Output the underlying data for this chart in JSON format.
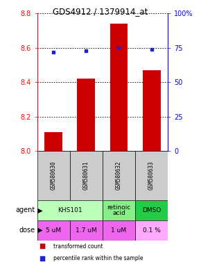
{
  "title": "GDS4912 / 1379914_at",
  "samples": [
    "GSM580630",
    "GSM580631",
    "GSM580632",
    "GSM580633"
  ],
  "bar_values": [
    8.11,
    8.42,
    8.74,
    8.47
  ],
  "perc_values": [
    72,
    73,
    75,
    74
  ],
  "ylim_left": [
    8.0,
    8.8
  ],
  "ylim_right": [
    0,
    100
  ],
  "yticks_left": [
    8.0,
    8.2,
    8.4,
    8.6,
    8.8
  ],
  "yticks_right": [
    0,
    25,
    50,
    75,
    100
  ],
  "ytick_labels_right": [
    "0",
    "25",
    "50",
    "75",
    "100%"
  ],
  "bar_color": "#cc0000",
  "dot_color": "#2222cc",
  "bar_width": 0.55,
  "agent_blocks": [
    {
      "start": 0,
      "end": 2,
      "label": "KHS101",
      "color": "#bbffbb"
    },
    {
      "start": 2,
      "end": 3,
      "label": "retinoic\nacid",
      "color": "#88ee88"
    },
    {
      "start": 3,
      "end": 4,
      "label": "DMSO",
      "color": "#22cc44"
    }
  ],
  "dose_labels": [
    "5 uM",
    "1.7 uM",
    "1 uM",
    "0.1 %"
  ],
  "dose_colors": [
    "#ee66ee",
    "#ee66ee",
    "#ee66ee",
    "#ffaaff"
  ],
  "sample_bg_color": "#cccccc",
  "legend_red_label": "transformed count",
  "legend_blue_label": "percentile rank within the sample"
}
